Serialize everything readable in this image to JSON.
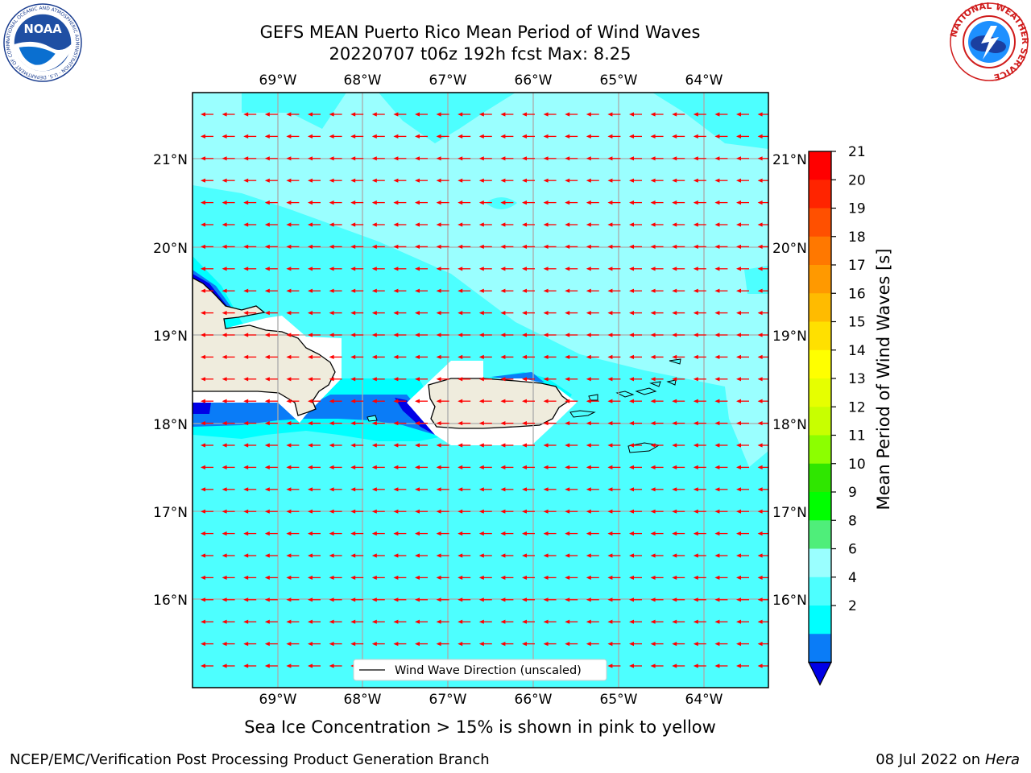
{
  "title": {
    "line1": "GEFS MEAN Puerto Rico Mean Period of Wind Waves",
    "line2": "20220707 t06z 192h fcst   Max: 8.25"
  },
  "map": {
    "lon_ticks": [
      "69°W",
      "68°W",
      "67°W",
      "66°W",
      "65°W",
      "64°W"
    ],
    "lat_ticks": [
      "21°N",
      "20°N",
      "19°N",
      "18°N",
      "17°N",
      "16°N"
    ],
    "legend_label": "Wind Wave Direction (unscaled)",
    "field_colors": {
      "lt_4": "#0a7cf7",
      "lt_2": "#0000e6",
      "4_6": "#00ffff",
      "6_8": "#4dffff",
      "8_9": "#9affff",
      "land": "#efecdd",
      "arrow": "#ff0000"
    }
  },
  "colorbar": {
    "label": "Mean Period of Wind Waves [s]",
    "ticks": [
      "21",
      "20",
      "19",
      "18",
      "17",
      "16",
      "15",
      "14",
      "13",
      "12",
      "11",
      "10",
      "9",
      "8",
      "6",
      "4",
      "2"
    ],
    "colors": [
      "#ff0000",
      "#ff2400",
      "#ff5000",
      "#ff7800",
      "#ff9900",
      "#ffbb00",
      "#ffe000",
      "#ffff00",
      "#e6ff00",
      "#c8ff00",
      "#8cff00",
      "#2fe600",
      "#00ff00",
      "#4fee7a",
      "#9affff",
      "#4dffff",
      "#00ffff",
      "#0a7cf7",
      "#0000e6"
    ]
  },
  "logos": {
    "noaa_text": "NOAA",
    "noaa_ring": "NATIONAL OCEANIC AND ATMOSPHERIC ADMINISTRATION · U.S. DEPARTMENT OF COMMERCE",
    "nws_ring": "NATIONAL WEATHER SERVICE"
  },
  "footer": {
    "ice_note": "Sea Ice Concentration > 15% is shown in pink to yellow",
    "left": "NCEP/EMC/Verification Post Processing Product Generation Branch",
    "right_date": "08 Jul 2022 on",
    "right_host": "Hera"
  }
}
